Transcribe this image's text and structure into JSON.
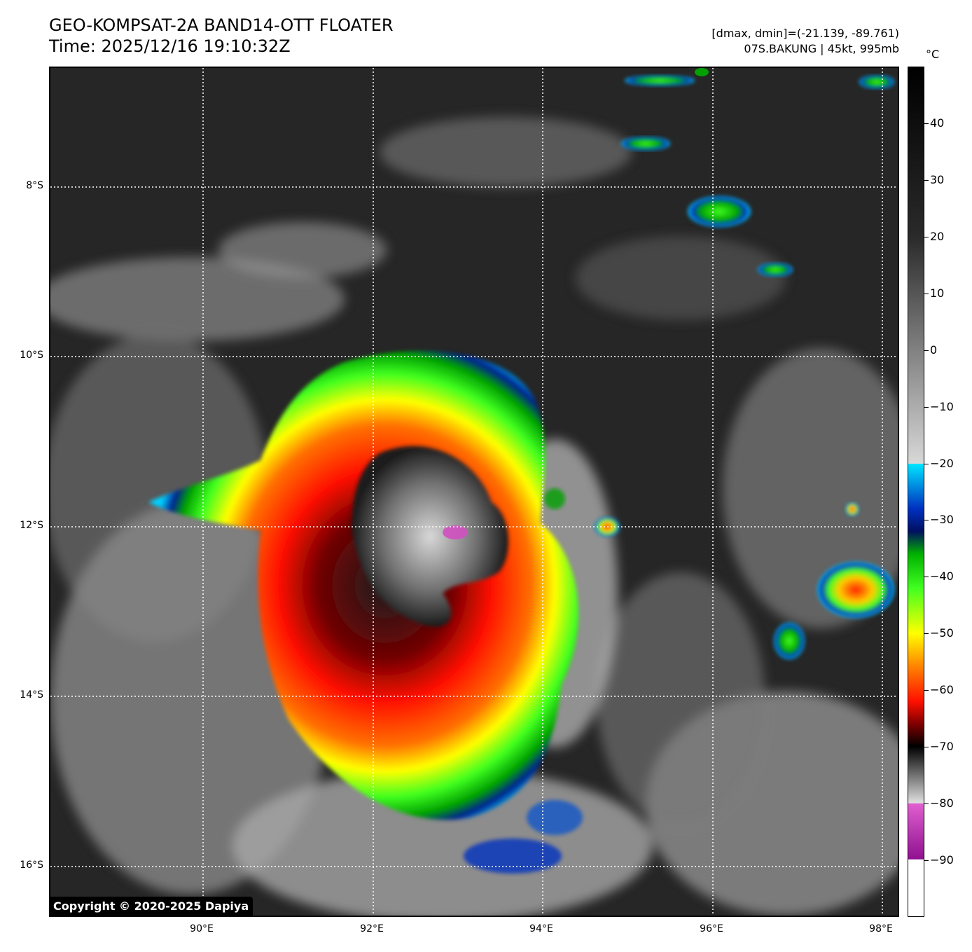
{
  "header": {
    "title_line1": "GEO-KOMPSAT-2A BAND14-OTT FLOATER",
    "title_line2": "Time: 2025/12/16 19:10:32Z",
    "range_text": "[dmax, dmin]=(-21.139, -89.761)",
    "storm_text": "07S.BAKUNG | 45kt, 995mb"
  },
  "map": {
    "copyright": "Copyright © 2020-2025 Dapiya",
    "lat_labels": [
      "8°S",
      "10°S",
      "12°S",
      "14°S",
      "16°S"
    ],
    "lon_labels": [
      "90°E",
      "92°E",
      "94°E",
      "96°E",
      "98°E"
    ],
    "grid_style": "dotted white",
    "storm_center": {
      "lat": -12.2,
      "lon": 93.0
    }
  },
  "colorbar": {
    "unit": "°C",
    "tick_labels": [
      "40",
      "30",
      "20",
      "10",
      "0",
      "−10",
      "−20",
      "−30",
      "−40",
      "−50",
      "−60",
      "−70",
      "−80",
      "−90"
    ],
    "range": [
      -100,
      50
    ],
    "color_stops": [
      {
        "value": 50,
        "color": "#000000"
      },
      {
        "value": 20,
        "color": "#2a2a2a"
      },
      {
        "value": -20,
        "color": "#d8d8d8"
      },
      {
        "value": -20.1,
        "color": "#00e5ff"
      },
      {
        "value": -28,
        "color": "#0030c0"
      },
      {
        "value": -32,
        "color": "#001060"
      },
      {
        "value": -36,
        "color": "#00b000"
      },
      {
        "value": -42,
        "color": "#40ff20"
      },
      {
        "value": -50,
        "color": "#ffff00"
      },
      {
        "value": -56,
        "color": "#ff8000"
      },
      {
        "value": -62,
        "color": "#ff1000"
      },
      {
        "value": -66,
        "color": "#800000"
      },
      {
        "value": -70,
        "color": "#000000"
      },
      {
        "value": -80,
        "color": "#e0e0e0"
      },
      {
        "value": -80.1,
        "color": "#e060d0"
      },
      {
        "value": -89.9,
        "color": "#901090"
      },
      {
        "value": -90,
        "color": "#ffffff"
      },
      {
        "value": -100,
        "color": "#ffffff"
      }
    ]
  }
}
